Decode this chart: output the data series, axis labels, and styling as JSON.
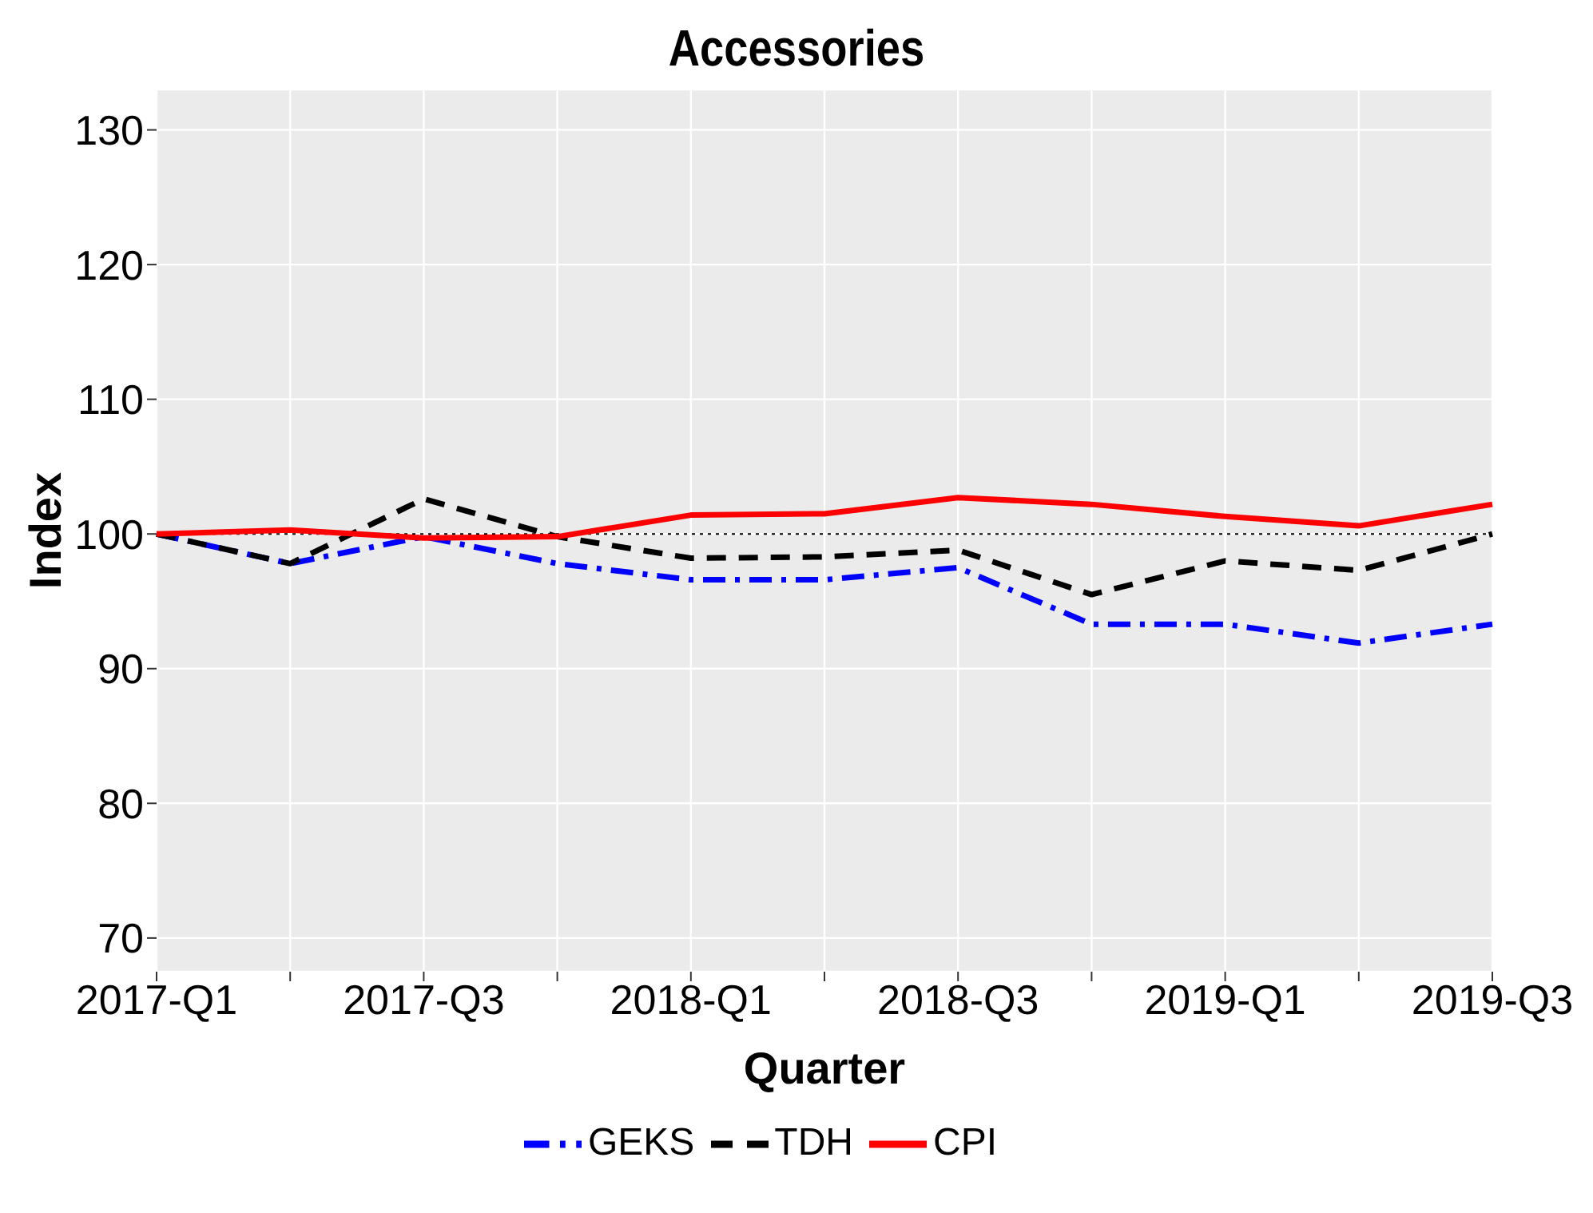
{
  "chart_data": {
    "type": "line",
    "title": "Accessories",
    "xlabel": "Quarter",
    "ylabel": "Index",
    "categories": [
      "2017-Q1",
      null,
      "2017-Q3",
      null,
      "2018-Q1",
      null,
      "2018-Q3",
      null,
      "2019-Q1",
      null,
      "2019-Q3"
    ],
    "series": [
      {
        "name": "GEKS",
        "color": "#0000ff",
        "line_style": "dashdot",
        "values": [
          100,
          97.8,
          99.8,
          97.8,
          96.6,
          96.6,
          97.5,
          93.3,
          93.3,
          91.9,
          93.3
        ]
      },
      {
        "name": "TDH",
        "color": "#000000",
        "line_style": "dashed",
        "values": [
          100,
          97.8,
          102.6,
          99.8,
          98.2,
          98.3,
          98.8,
          95.5,
          98,
          97.3,
          100
        ]
      },
      {
        "name": "CPI",
        "color": "#ff0000",
        "line_style": "solid",
        "values": [
          100,
          100.3,
          99.7,
          99.8,
          101.4,
          101.5,
          102.7,
          102.2,
          101.3,
          100.6,
          102.2
        ]
      }
    ],
    "ylim": [
      67.5,
      133
    ],
    "yticks": [
      70,
      80,
      90,
      100,
      110,
      120,
      130
    ],
    "ref_lines": [
      {
        "axis": "y",
        "value": 100,
        "color": "#000000",
        "line_style": "dotted"
      }
    ],
    "grid": true,
    "legend": "bottom",
    "marker": "none"
  }
}
